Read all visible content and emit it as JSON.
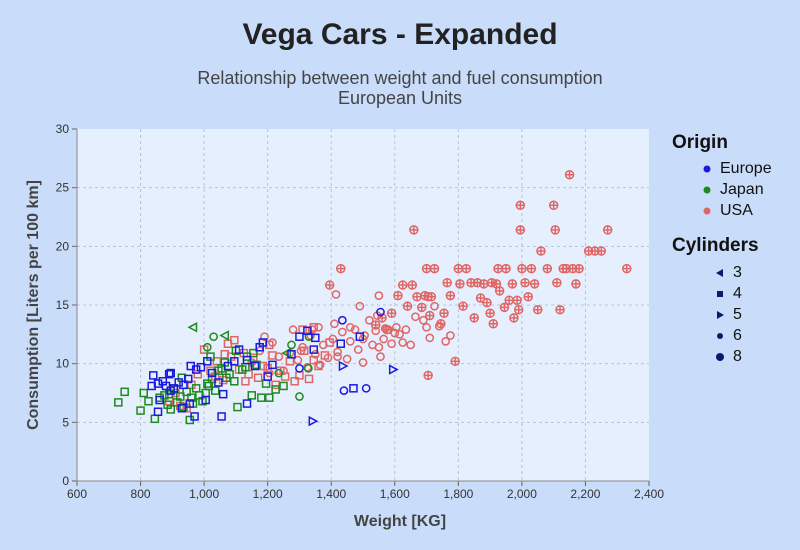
{
  "chart_data": {
    "type": "scatter",
    "title": "Vega Cars - Expanded",
    "subtitle_lines": [
      "Relationship between weight and fuel consumption",
      "European Units"
    ],
    "xlabel": "Weight [KG]",
    "ylabel": "Consumption [Liters per 100 km]",
    "xlim": [
      600,
      2400
    ],
    "ylim": [
      0,
      30
    ],
    "x_ticks": [
      600,
      800,
      1000,
      1200,
      1400,
      1600,
      1800,
      2000,
      2200,
      2400
    ],
    "x_tick_labels": [
      "600",
      "800",
      "1,000",
      "1,200",
      "1,400",
      "1,600",
      "1,800",
      "2,000",
      "2,200",
      "2,400"
    ],
    "y_ticks": [
      0,
      5,
      10,
      15,
      20,
      25,
      30
    ],
    "y_tick_labels": [
      "0",
      "5",
      "10",
      "15",
      "20",
      "25",
      "30"
    ],
    "grid": true,
    "legend": {
      "position": "right",
      "color_title": "Origin",
      "color_entries": [
        {
          "label": "Europe",
          "color": "#1a1adb"
        },
        {
          "label": "Japan",
          "color": "#1e8a1e"
        },
        {
          "label": "USA",
          "color": "#e06666"
        }
      ],
      "shape_title": "Cylinders",
      "shape_entries": [
        {
          "label": "3",
          "shape": "triangle-left"
        },
        {
          "label": "4",
          "shape": "square"
        },
        {
          "label": "5",
          "shape": "triangle-right"
        },
        {
          "label": "6",
          "shape": "circle"
        },
        {
          "label": "8",
          "shape": "cross"
        }
      ]
    },
    "series": [
      {
        "origin": "Europe",
        "cylinders": "4",
        "points": [
          [
            835,
            8.1
          ],
          [
            840,
            9
          ],
          [
            855,
            8.3
          ],
          [
            870,
            8.5
          ],
          [
            880,
            8.1
          ],
          [
            890,
            9.1
          ],
          [
            895,
            9.2
          ],
          [
            905,
            7.9
          ],
          [
            920,
            8.4
          ],
          [
            935,
            8.2
          ],
          [
            950,
            8.7
          ],
          [
            958,
            9.8
          ],
          [
            975,
            9.5
          ],
          [
            990,
            9.7
          ],
          [
            1010,
            10.2
          ],
          [
            1025,
            9.2
          ],
          [
            1045,
            8.4
          ],
          [
            1060,
            7.4
          ],
          [
            1075,
            9.8
          ],
          [
            1095,
            10.2
          ],
          [
            1110,
            11.2
          ],
          [
            1135,
            10.3
          ],
          [
            1160,
            9.8
          ],
          [
            1175,
            11.4
          ],
          [
            1185,
            11.8
          ],
          [
            1200,
            8.9
          ],
          [
            1215,
            9.9
          ],
          [
            1275,
            10.8
          ],
          [
            1300,
            12.3
          ],
          [
            1325,
            12.8
          ],
          [
            1345,
            11.2
          ],
          [
            1350,
            12.2
          ],
          [
            1430,
            11.7
          ],
          [
            1470,
            7.9
          ],
          [
            1490,
            12.3
          ],
          [
            855,
            5.9
          ],
          [
            860,
            6.9
          ],
          [
            895,
            7.7
          ],
          [
            930,
            6.2
          ],
          [
            955,
            6.6
          ],
          [
            970,
            5.5
          ],
          [
            1005,
            6.9
          ],
          [
            1055,
            5.5
          ],
          [
            1135,
            6.6
          ]
        ]
      },
      {
        "origin": "Europe",
        "cylinders": "5",
        "points": [
          [
            1342,
            5.1
          ],
          [
            1437,
            9.8
          ],
          [
            1595,
            9.5
          ]
        ]
      },
      {
        "origin": "Europe",
        "cylinders": "6",
        "points": [
          [
            1300,
            9.6
          ],
          [
            1435,
            13.7
          ],
          [
            1555,
            14.4
          ],
          [
            1440,
            7.7
          ],
          [
            1510,
            7.9
          ]
        ]
      },
      {
        "origin": "Japan",
        "cylinders": "3",
        "points": [
          [
            965,
            13.1
          ],
          [
            1065,
            12.4
          ],
          [
            1260,
            10.9
          ]
        ]
      },
      {
        "origin": "Japan",
        "cylinders": "4",
        "points": [
          [
            730,
            6.7
          ],
          [
            750,
            7.6
          ],
          [
            800,
            6
          ],
          [
            810,
            7.5
          ],
          [
            825,
            6.8
          ],
          [
            845,
            5.3
          ],
          [
            860,
            7.1
          ],
          [
            875,
            7.3
          ],
          [
            885,
            6.5
          ],
          [
            895,
            6.1
          ],
          [
            905,
            7.8
          ],
          [
            915,
            6.7
          ],
          [
            925,
            7.2
          ],
          [
            935,
            6.3
          ],
          [
            945,
            7.6
          ],
          [
            955,
            5.2
          ],
          [
            965,
            6.6
          ],
          [
            975,
            7.9
          ],
          [
            985,
            7.3
          ],
          [
            995,
            6.8
          ],
          [
            1005,
            7.5
          ],
          [
            1015,
            8.1
          ],
          [
            1025,
            8.7
          ],
          [
            1035,
            7.7
          ],
          [
            1045,
            9.4
          ],
          [
            1055,
            9.6
          ],
          [
            1065,
            10.1
          ],
          [
            1080,
            9.1
          ],
          [
            1095,
            8.5
          ],
          [
            1105,
            6.3
          ],
          [
            1120,
            9.5
          ],
          [
            1135,
            10.6
          ],
          [
            1150,
            7.3
          ],
          [
            1165,
            9.9
          ],
          [
            1180,
            7.1
          ],
          [
            1205,
            7.1
          ],
          [
            1225,
            7.8
          ],
          [
            1250,
            8.1
          ],
          [
            890,
            7.4
          ],
          [
            930,
            8.8
          ],
          [
            960,
            7.1
          ],
          [
            1010,
            8.3
          ],
          [
            1020,
            10.6
          ],
          [
            1070,
            8.8
          ],
          [
            1100,
            11.1
          ],
          [
            1130,
            9.7
          ],
          [
            1155,
            10.9
          ],
          [
            1195,
            8.3
          ]
        ]
      },
      {
        "origin": "Japan",
        "cylinders": "6",
        "points": [
          [
            1275,
            11.6
          ],
          [
            1330,
            12.3
          ],
          [
            1328,
            9.6
          ],
          [
            1300,
            7.2
          ],
          [
            1235,
            9.2
          ],
          [
            1030,
            12.3
          ],
          [
            1010,
            11.4
          ]
        ]
      },
      {
        "origin": "USA",
        "cylinders": "4",
        "points": [
          [
            890,
            6.8
          ],
          [
            910,
            7.5
          ],
          [
            925,
            6.4
          ],
          [
            945,
            6.2
          ],
          [
            960,
            8.2
          ],
          [
            980,
            9.1
          ],
          [
            1000,
            11.2
          ],
          [
            1020,
            9.4
          ],
          [
            1040,
            10.2
          ],
          [
            1060,
            8.6
          ],
          [
            1075,
            11.7
          ],
          [
            1085,
            10.6
          ],
          [
            1095,
            12
          ],
          [
            1110,
            9.5
          ],
          [
            1125,
            10.9
          ],
          [
            1140,
            9.1
          ],
          [
            1155,
            10.5
          ],
          [
            1170,
            8.8
          ],
          [
            1185,
            9.8
          ],
          [
            1200,
            9.6
          ],
          [
            1215,
            10.7
          ],
          [
            1225,
            8.2
          ],
          [
            1240,
            9.4
          ],
          [
            1255,
            8.9
          ],
          [
            1270,
            10.2
          ],
          [
            1285,
            8.5
          ],
          [
            1300,
            9
          ],
          [
            1315,
            11.1
          ],
          [
            1330,
            8.7
          ],
          [
            1345,
            10.3
          ],
          [
            1360,
            9.8
          ],
          [
            1380,
            10.7
          ],
          [
            1310,
            12.9
          ],
          [
            1345,
            13.1
          ],
          [
            1395,
            11.8
          ],
          [
            1035,
            8.9
          ],
          [
            1065,
            10.8
          ],
          [
            1130,
            8.5
          ],
          [
            1205,
            11.6
          ]
        ]
      },
      {
        "origin": "USA",
        "cylinders": "6",
        "points": [
          [
            1150,
            10.1
          ],
          [
            1175,
            11.1
          ],
          [
            1190,
            12.3
          ],
          [
            1205,
            9.2
          ],
          [
            1215,
            11.8
          ],
          [
            1235,
            10.6
          ],
          [
            1250,
            9.4
          ],
          [
            1270,
            10.9
          ],
          [
            1280,
            12.9
          ],
          [
            1295,
            10.3
          ],
          [
            1310,
            11.4
          ],
          [
            1325,
            9.7
          ],
          [
            1335,
            12.4
          ],
          [
            1350,
            10.8
          ],
          [
            1365,
            9.9
          ],
          [
            1375,
            11.6
          ],
          [
            1390,
            10.5
          ],
          [
            1405,
            12.1
          ],
          [
            1420,
            11
          ],
          [
            1435,
            12.7
          ],
          [
            1450,
            10.4
          ],
          [
            1460,
            11.9
          ],
          [
            1475,
            12.9
          ],
          [
            1485,
            11.2
          ],
          [
            1500,
            10.1
          ],
          [
            1505,
            12.4
          ],
          [
            1520,
            13.7
          ],
          [
            1530,
            11.6
          ],
          [
            1540,
            12.8
          ],
          [
            1550,
            11.4
          ],
          [
            1555,
            10.6
          ],
          [
            1565,
            12.1
          ],
          [
            1580,
            12.9
          ],
          [
            1590,
            11.7
          ],
          [
            1605,
            13.1
          ],
          [
            1615,
            12.5
          ],
          [
            1625,
            11.8
          ],
          [
            1635,
            12.9
          ],
          [
            1650,
            11.6
          ],
          [
            1665,
            14
          ],
          [
            1690,
            13.7
          ],
          [
            1710,
            12.2
          ],
          [
            1725,
            14.9
          ],
          [
            1740,
            13.2
          ],
          [
            1760,
            11.9
          ],
          [
            1775,
            12.4
          ],
          [
            1415,
            15.9
          ],
          [
            1490,
            14.9
          ],
          [
            1550,
            15.8
          ],
          [
            1340,
            12.9
          ],
          [
            1410,
            13.4
          ],
          [
            1460,
            13.1
          ],
          [
            1545,
            14.1
          ],
          [
            1570,
            13
          ],
          [
            1500,
            12.1
          ],
          [
            1305,
            11.1
          ],
          [
            1360,
            13.1
          ],
          [
            1420,
            10.6
          ],
          [
            1600,
            12.6
          ],
          [
            1700,
            13.1
          ]
        ]
      },
      {
        "origin": "USA",
        "cylinders": "8",
        "points": [
          [
            1395,
            16.7
          ],
          [
            1430,
            18.1
          ],
          [
            1540,
            13.3
          ],
          [
            1560,
            13.9
          ],
          [
            1575,
            12.9
          ],
          [
            1590,
            14.3
          ],
          [
            1610,
            15.8
          ],
          [
            1625,
            16.7
          ],
          [
            1640,
            14.9
          ],
          [
            1655,
            16.7
          ],
          [
            1660,
            21.4
          ],
          [
            1670,
            15.7
          ],
          [
            1685,
            14.8
          ],
          [
            1695,
            15.8
          ],
          [
            1700,
            18.1
          ],
          [
            1705,
            15.7
          ],
          [
            1710,
            14.1
          ],
          [
            1715,
            15.7
          ],
          [
            1725,
            18.1
          ],
          [
            1745,
            13.4
          ],
          [
            1755,
            14.3
          ],
          [
            1765,
            16.9
          ],
          [
            1775,
            15.8
          ],
          [
            1790,
            10.2
          ],
          [
            1800,
            18.1
          ],
          [
            1805,
            16.8
          ],
          [
            1815,
            14.9
          ],
          [
            1825,
            18.1
          ],
          [
            1840,
            16.9
          ],
          [
            1850,
            13.9
          ],
          [
            1860,
            16.9
          ],
          [
            1870,
            15.6
          ],
          [
            1880,
            16.8
          ],
          [
            1890,
            15.2
          ],
          [
            1900,
            14.3
          ],
          [
            1905,
            16.9
          ],
          [
            1910,
            13.4
          ],
          [
            1920,
            16.8
          ],
          [
            1925,
            18.1
          ],
          [
            1930,
            16.2
          ],
          [
            1945,
            14.8
          ],
          [
            1950,
            18.1
          ],
          [
            1960,
            15.4
          ],
          [
            1970,
            16.8
          ],
          [
            1975,
            13.9
          ],
          [
            1985,
            15.4
          ],
          [
            1990,
            14.6
          ],
          [
            1995,
            23.5
          ],
          [
            2000,
            18.1
          ],
          [
            2010,
            16.9
          ],
          [
            2020,
            15.7
          ],
          [
            2030,
            18.1
          ],
          [
            2040,
            16.8
          ],
          [
            2050,
            14.6
          ],
          [
            2060,
            19.6
          ],
          [
            2080,
            18.1
          ],
          [
            2100,
            23.5
          ],
          [
            2105,
            21.4
          ],
          [
            2110,
            16.9
          ],
          [
            2120,
            14.6
          ],
          [
            2130,
            18.1
          ],
          [
            2140,
            18.1
          ],
          [
            2150,
            26.1
          ],
          [
            2160,
            18.1
          ],
          [
            2170,
            16.8
          ],
          [
            2180,
            18.1
          ],
          [
            2210,
            19.6
          ],
          [
            2230,
            19.6
          ],
          [
            2250,
            19.6
          ],
          [
            2270,
            21.4
          ],
          [
            2330,
            18.1
          ],
          [
            1995,
            21.4
          ],
          [
            1705,
            9
          ]
        ]
      }
    ]
  }
}
